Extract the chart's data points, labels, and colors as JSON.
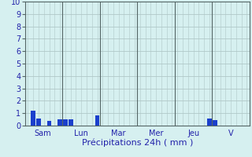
{
  "title": "",
  "xlabel": "Précipitations 24h ( mm )",
  "ylabel": "",
  "ylim": [
    0,
    10
  ],
  "yticks": [
    0,
    1,
    2,
    3,
    4,
    5,
    6,
    7,
    8,
    9,
    10
  ],
  "background_color": "#d6f0f0",
  "plot_bg_color": "#d6f0f0",
  "grid_color": "#b0c8c8",
  "bar_color": "#1a3fcc",
  "xlabel_color": "#2222aa",
  "tick_color": "#2222aa",
  "n_bars": 42,
  "day_labels": [
    "Sam",
    "Lun",
    "Mar",
    "Mer",
    "Jeu",
    "V"
  ],
  "day_sep_positions": [
    7.5,
    14.5,
    21.5,
    28.5,
    35.5
  ],
  "day_tick_positions": [
    3.75,
    11.0,
    18.0,
    25.0,
    32.0,
    39.0
  ],
  "bar_values": [
    0,
    1.2,
    0.6,
    0,
    0.4,
    0,
    0.5,
    0.5,
    0.5,
    0,
    0,
    0,
    0,
    0.85,
    0,
    0,
    0,
    0,
    0,
    0,
    0,
    0,
    0,
    0,
    0,
    0,
    0,
    0,
    0,
    0,
    0,
    0,
    0,
    0,
    0.55,
    0.45,
    0,
    0,
    0,
    0,
    0,
    0
  ]
}
